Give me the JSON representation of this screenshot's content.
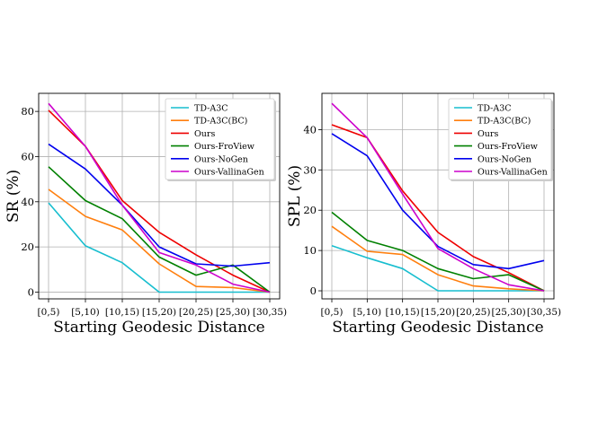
{
  "chart_data": [
    {
      "type": "line",
      "ylabel": "SR (%)",
      "xlabel": "Starting Geodesic Distance",
      "categories": [
        "[0,5)",
        "[5,10)",
        "[10,15)",
        "[15,20)",
        "[20,25)",
        "[25,30)",
        "[30,35)"
      ],
      "ylim": [
        -3,
        88
      ],
      "yticks": [
        0,
        20,
        40,
        60,
        80
      ],
      "grid": true,
      "legend_position": "top-right",
      "series": [
        {
          "name": "TD-A3C",
          "color": "#17becf",
          "values": [
            39.5,
            20.5,
            13,
            0,
            0,
            0,
            0
          ]
        },
        {
          "name": "TD-A3C(BC)",
          "color": "#ff7f0e",
          "values": [
            45.5,
            33.5,
            27.5,
            12.5,
            2.5,
            2,
            0
          ]
        },
        {
          "name": "Ours",
          "color": "#ee0000",
          "values": [
            80.5,
            64.5,
            40.5,
            26.5,
            16.5,
            7.5,
            0
          ]
        },
        {
          "name": "Ours-FroView",
          "color": "#008000",
          "values": [
            55.5,
            40.5,
            32.5,
            15.5,
            7.5,
            12,
            0
          ]
        },
        {
          "name": "Ours-NoGen",
          "color": "#0000ee",
          "values": [
            65.5,
            54.5,
            38.5,
            20,
            12.5,
            11.5,
            13
          ]
        },
        {
          "name": "Ours-VallinaGen",
          "color": "#cc00cc",
          "values": [
            83.5,
            64.5,
            38.5,
            17.5,
            12,
            3.5,
            0
          ]
        }
      ]
    },
    {
      "type": "line",
      "ylabel": "SPL (%)",
      "xlabel": "Starting Geodesic Distance",
      "categories": [
        "[0,5)",
        "[5,10)",
        "[10,15)",
        "[15,20)",
        "[20,25)",
        "[25,30)",
        "[30,35)"
      ],
      "ylim": [
        -2,
        49
      ],
      "yticks": [
        0,
        10,
        20,
        30,
        40
      ],
      "grid": true,
      "legend_position": "top-right",
      "series": [
        {
          "name": "TD-A3C",
          "color": "#17becf",
          "values": [
            11.2,
            8.2,
            5.5,
            0,
            0,
            0,
            0
          ]
        },
        {
          "name": "TD-A3C(BC)",
          "color": "#ff7f0e",
          "values": [
            16,
            9.8,
            9,
            4,
            1.2,
            0.5,
            0
          ]
        },
        {
          "name": "Ours",
          "color": "#ee0000",
          "values": [
            41.2,
            38,
            24.8,
            14.5,
            8.5,
            4.5,
            0
          ]
        },
        {
          "name": "Ours-FroView",
          "color": "#008000",
          "values": [
            19.5,
            12.5,
            10,
            5.5,
            3,
            4,
            0
          ]
        },
        {
          "name": "Ours-NoGen",
          "color": "#0000ee",
          "values": [
            39,
            33.5,
            20,
            11,
            6.5,
            5.5,
            7.5
          ]
        },
        {
          "name": "Ours-VallinaGen",
          "color": "#cc00cc",
          "values": [
            46.5,
            38,
            24,
            10.5,
            5.5,
            1.5,
            0
          ]
        }
      ]
    }
  ]
}
